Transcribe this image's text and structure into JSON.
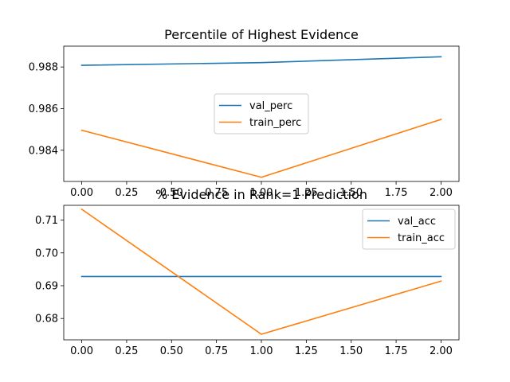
{
  "chart_data": [
    {
      "type": "line",
      "title": "Percentile of Highest Evidence",
      "x": [
        0,
        1,
        2
      ],
      "xlim": [
        -0.1,
        2.1
      ],
      "ylim": [
        0.9825,
        0.989
      ],
      "xticks": [
        0.0,
        0.25,
        0.5,
        0.75,
        1.0,
        1.25,
        1.5,
        1.75,
        2.0
      ],
      "xtick_labels": [
        "0.00",
        "0.25",
        "0.50",
        "0.75",
        "1.00",
        "1.25",
        "1.50",
        "1.75",
        "2.00"
      ],
      "yticks": [
        0.984,
        0.986,
        0.988
      ],
      "ytick_labels": [
        "0.984",
        "0.986",
        "0.988"
      ],
      "legend_position": "center",
      "series": [
        {
          "name": "val_perc",
          "color": "#1f77b4",
          "values": [
            0.98808,
            0.98821,
            0.98849
          ]
        },
        {
          "name": "train_perc",
          "color": "#ff7f0e",
          "values": [
            0.98496,
            0.9827,
            0.98548
          ]
        }
      ]
    },
    {
      "type": "line",
      "title": "% Evidence in Rank=1 Prediction",
      "x": [
        0,
        1,
        2
      ],
      "xlim": [
        -0.1,
        2.1
      ],
      "ylim": [
        0.6735,
        0.7145
      ],
      "xticks": [
        0.0,
        0.25,
        0.5,
        0.75,
        1.0,
        1.25,
        1.5,
        1.75,
        2.0
      ],
      "xtick_labels": [
        "0.00",
        "0.25",
        "0.50",
        "0.75",
        "1.00",
        "1.25",
        "1.50",
        "1.75",
        "2.00"
      ],
      "yticks": [
        0.68,
        0.69,
        0.7,
        0.71
      ],
      "ytick_labels": [
        "0.68",
        "0.69",
        "0.70",
        "0.71"
      ],
      "legend_position": "top-right",
      "series": [
        {
          "name": "val_acc",
          "color": "#1f77b4",
          "values": [
            0.6928,
            0.6928,
            0.6928
          ]
        },
        {
          "name": "train_acc",
          "color": "#ff7f0e",
          "values": [
            0.7133,
            0.6752,
            0.6914
          ]
        }
      ]
    }
  ]
}
